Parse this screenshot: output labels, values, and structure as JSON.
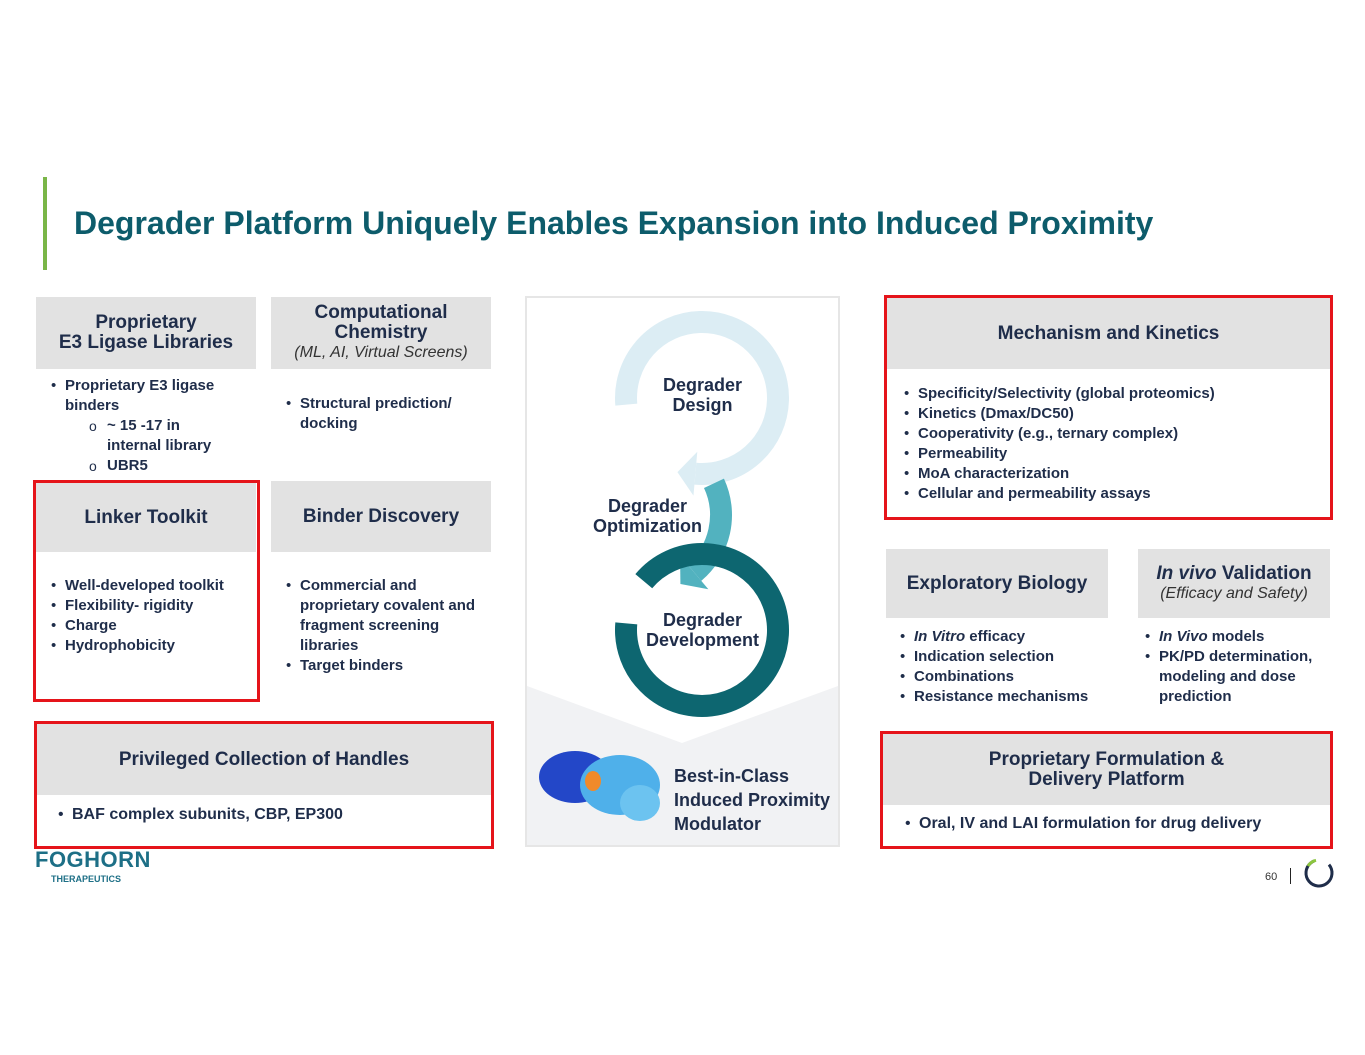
{
  "title": "Degrader Platform Uniquely Enables Expansion into Induced Proximity",
  "boxes": {
    "e3": {
      "title_l1": "Proprietary",
      "title_l2": "E3 Ligase Libraries",
      "bullets": [
        "Proprietary E3 ligase binders"
      ],
      "sub": [
        "~ 15 -17 in internal library",
        "UBR5"
      ]
    },
    "comp": {
      "title_l1": "Computational",
      "title_l2": "Chemistry",
      "subtitle": "(ML, AI, Virtual Screens)",
      "bullets": [
        "Structural prediction/ docking"
      ]
    },
    "linker": {
      "title": "Linker Toolkit",
      "bullets": [
        "Well-developed toolkit",
        "Flexibility- rigidity",
        "Charge",
        "Hydrophobicity"
      ]
    },
    "binder": {
      "title": "Binder Discovery",
      "bullets": [
        "Commercial and proprietary covalent and fragment screening libraries",
        "Target binders"
      ]
    },
    "handles": {
      "title": "Privileged Collection of Handles",
      "bullets": [
        "BAF complex subunits, CBP, EP300"
      ]
    },
    "mech": {
      "title": "Mechanism and Kinetics",
      "bullets": [
        "Specificity/Selectivity (global proteomics)",
        "Kinetics (Dmax/DC50)",
        "Cooperativity (e.g., ternary complex)",
        "Permeability",
        "MoA characterization",
        "Cellular and permeability assays"
      ]
    },
    "explor": {
      "title": "Exploratory Biology",
      "bullets": [
        {
          "em": "In Vitro",
          "rest": " efficacy"
        },
        {
          "rest": "Indication selection"
        },
        {
          "rest": "Combinations"
        },
        {
          "rest": "Resistance mechanisms"
        }
      ]
    },
    "invivo": {
      "title_em": "In vivo",
      "title_rest": " Validation",
      "subtitle": "(Efficacy and Safety)",
      "bullets": [
        {
          "em": "In Vivo",
          "rest": " models"
        },
        {
          "rest": "PK/PD determination, modeling and dose prediction"
        }
      ]
    },
    "form": {
      "title_l1": "Proprietary Formulation &",
      "title_l2": "Delivery Platform",
      "bullets": [
        "Oral, IV and LAI formulation for drug delivery"
      ]
    }
  },
  "cycle": {
    "design": [
      "Degrader",
      "Design"
    ],
    "optimization": [
      "Degrader",
      "Optimization"
    ],
    "development": [
      "Degrader",
      "Development"
    ],
    "result": [
      "Best-in-Class",
      "Induced Proximity",
      "Modulator"
    ],
    "colors": {
      "design": "#dcedf4",
      "optimization": "#52b2bf",
      "development": "#0d6670"
    }
  },
  "footer": {
    "logo": "FOGHORN",
    "logo_sub": "THERAPEUTICS",
    "page": "60"
  }
}
